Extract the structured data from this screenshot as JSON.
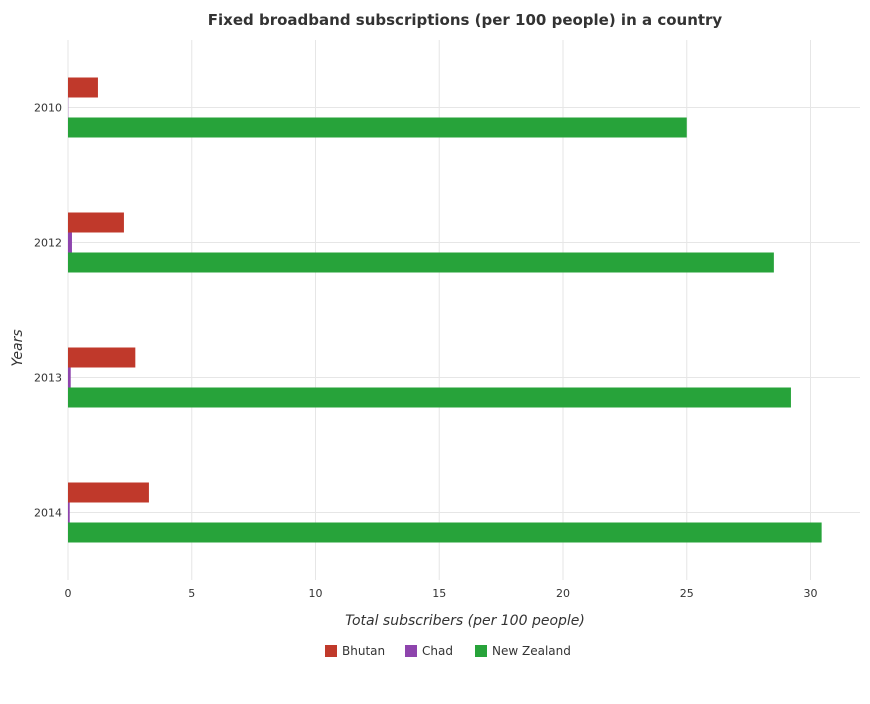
{
  "chart_data": {
    "type": "bar",
    "orientation": "horizontal",
    "title": "Fixed broadband subscriptions (per 100 people) in a country",
    "xlabel": "Total subscribers (per 100 people)",
    "ylabel": "Years",
    "categories": [
      "2010",
      "2012",
      "2013",
      "2014"
    ],
    "xlim": [
      0,
      32
    ],
    "xticks": [
      "0",
      "5",
      "10",
      "15",
      "20",
      "25",
      "30"
    ],
    "grid": true,
    "legend_position": "bottom",
    "series": [
      {
        "name": "Bhutan",
        "color": "#c0392b",
        "values": [
          1.21,
          2.26,
          2.72,
          3.27
        ]
      },
      {
        "name": "Chad",
        "color": "#8e44ad",
        "values": [
          0.01,
          0.16,
          0.11,
          0.07
        ]
      },
      {
        "name": "New Zealand",
        "color": "#27a33a",
        "values": [
          25.0,
          28.52,
          29.21,
          30.45
        ]
      }
    ]
  }
}
